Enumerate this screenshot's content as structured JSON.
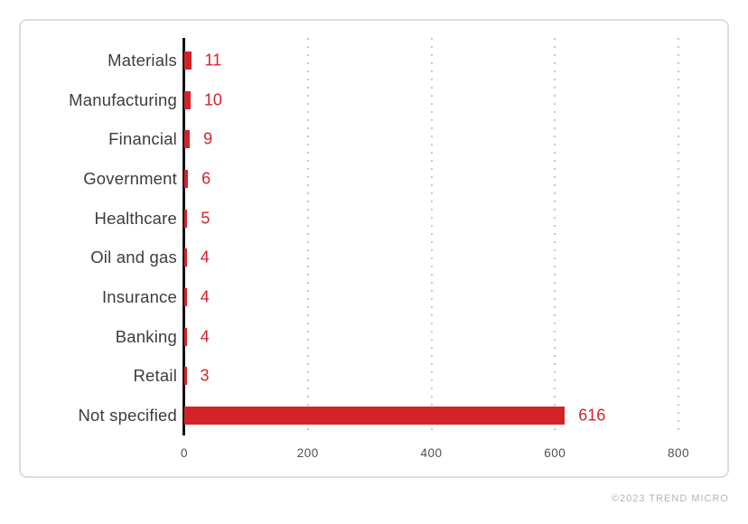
{
  "chart_data": {
    "type": "bar",
    "orientation": "horizontal",
    "categories": [
      "Materials",
      "Manufacturing",
      "Financial",
      "Government",
      "Healthcare",
      "Oil and gas",
      "Insurance",
      "Banking",
      "Retail",
      "Not specified"
    ],
    "values": [
      11,
      10,
      9,
      6,
      5,
      4,
      4,
      4,
      3,
      616
    ],
    "value_labels": [
      "11",
      "10",
      "9",
      "6",
      "5",
      "4",
      "4",
      "4",
      "3",
      "616"
    ],
    "title": "",
    "xlabel": "",
    "ylabel": "",
    "xlim": [
      0,
      800
    ],
    "xticks": [
      0,
      200,
      400,
      600,
      800
    ],
    "xtick_labels": [
      "0",
      "200",
      "400",
      "600",
      "800"
    ],
    "grid": "vertical-dotted",
    "legend_position": "none",
    "bar_color": "#d2232a",
    "value_label_color": "#d2232a",
    "category_label_color": "#3d3d3d",
    "axis_line_color": "#141414"
  },
  "footer": {
    "credit": "©2023 TREND MICRO"
  }
}
